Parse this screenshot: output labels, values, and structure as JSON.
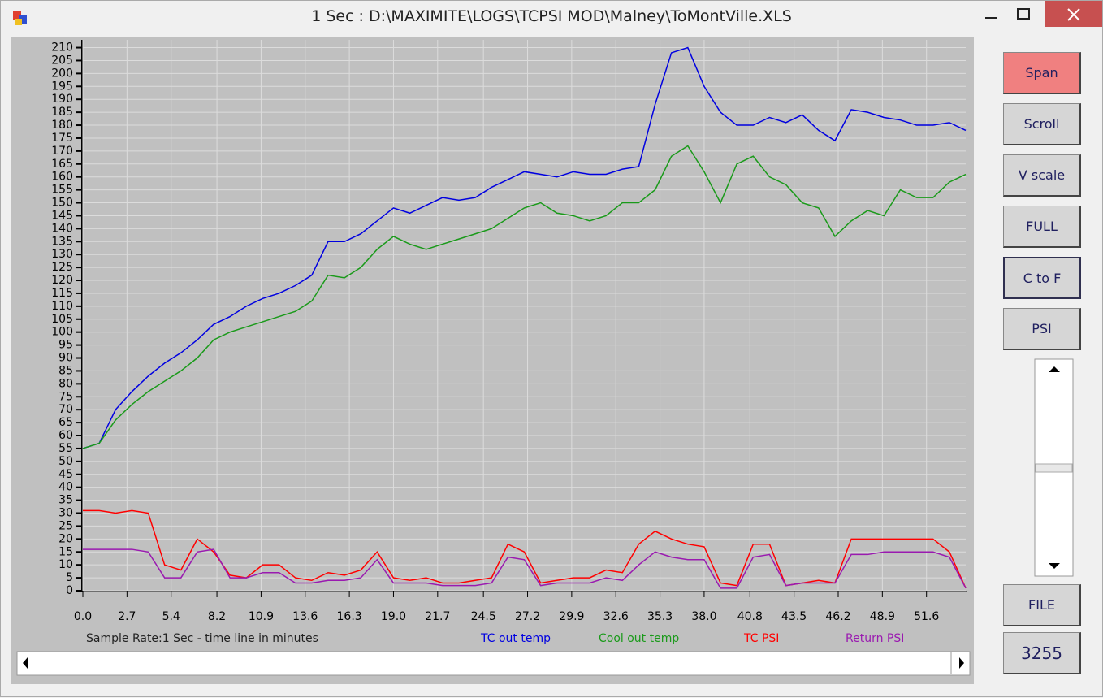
{
  "window": {
    "title": "1 Sec : D:\\MAXIMITE\\LOGS\\TCPSI MOD\\Malney\\ToMontVille.XLS"
  },
  "buttons": [
    "Span",
    "Scroll",
    "V scale",
    "FULL",
    "C to F",
    "PSI",
    "FILE"
  ],
  "counter": "3255",
  "chart_data": {
    "type": "line",
    "x_label": "Sample Rate:1 Sec - time line in minutes",
    "x": [
      0,
      1,
      2,
      3,
      4,
      5,
      6,
      7,
      8,
      9,
      10,
      11,
      12,
      13,
      14,
      15,
      16,
      17,
      18,
      19,
      20,
      21,
      22,
      23,
      24,
      25,
      26,
      27,
      28,
      29,
      30,
      31,
      32,
      33,
      34,
      35,
      36,
      37,
      38,
      39,
      40,
      41,
      42,
      43,
      44,
      45,
      46,
      47,
      48,
      49,
      50,
      51,
      52,
      53,
      54
    ],
    "xlim": [
      0,
      54
    ],
    "xticks": [
      {
        "value": 0,
        "label": "0.0"
      },
      2.7,
      5.4,
      8.2,
      10.9,
      13.6,
      16.3,
      {
        "value": 19,
        "label": "19.0"
      },
      21.7,
      24.5,
      27.2,
      29.9,
      32.6,
      35.3,
      {
        "value": 38,
        "label": "38.0"
      },
      40.8,
      43.5,
      46.2,
      48.9,
      51.6
    ],
    "ylim": [
      0,
      213
    ],
    "yticks": [
      0,
      5,
      10,
      15,
      20,
      25,
      30,
      35,
      40,
      45,
      50,
      55,
      60,
      65,
      70,
      75,
      80,
      85,
      90,
      95,
      100,
      105,
      110,
      115,
      120,
      125,
      130,
      135,
      140,
      145,
      150,
      155,
      160,
      165,
      170,
      175,
      180,
      185,
      190,
      195,
      200,
      205,
      210
    ],
    "grid": true,
    "series": [
      {
        "name": "TC out temp",
        "color": "#0000e0",
        "values": [
          55,
          57,
          70,
          77,
          83,
          88,
          92,
          97,
          103,
          106,
          110,
          113,
          115,
          118,
          122,
          135,
          135,
          138,
          143,
          148,
          146,
          149,
          152,
          151,
          152,
          156,
          159,
          162,
          161,
          160,
          162,
          161,
          161,
          163,
          164,
          188,
          208,
          210,
          195,
          185,
          180,
          180,
          183,
          181,
          184,
          178,
          174,
          186,
          185,
          183,
          182,
          180,
          180,
          181,
          178
        ]
      },
      {
        "name": "Cool out temp",
        "color": "#1a9a1a",
        "values": [
          55,
          57,
          66,
          72,
          77,
          81,
          85,
          90,
          97,
          100,
          102,
          104,
          106,
          108,
          112,
          122,
          121,
          125,
          132,
          137,
          134,
          132,
          134,
          136,
          138,
          140,
          144,
          148,
          150,
          146,
          145,
          143,
          145,
          150,
          150,
          155,
          168,
          172,
          162,
          150,
          165,
          168,
          160,
          157,
          150,
          148,
          137,
          143,
          147,
          145,
          155,
          152,
          152,
          158,
          161
        ]
      },
      {
        "name": "TC PSI",
        "color": "#ff0000",
        "values": [
          31,
          31,
          30,
          31,
          30,
          10,
          8,
          20,
          15,
          6,
          5,
          10,
          10,
          5,
          4,
          7,
          6,
          8,
          15,
          5,
          4,
          5,
          3,
          3,
          4,
          5,
          18,
          15,
          3,
          4,
          5,
          5,
          8,
          7,
          18,
          23,
          20,
          18,
          17,
          3,
          2,
          18,
          18,
          2,
          3,
          4,
          3,
          20,
          20,
          20,
          20,
          20,
          20,
          15,
          1
        ]
      },
      {
        "name": "Return PSI",
        "color": "#9a1ab0",
        "values": [
          16,
          16,
          16,
          16,
          15,
          5,
          5,
          15,
          16,
          5,
          5,
          7,
          7,
          3,
          3,
          4,
          4,
          5,
          12,
          3,
          3,
          3,
          2,
          2,
          2,
          3,
          13,
          12,
          2,
          3,
          3,
          3,
          5,
          4,
          10,
          15,
          13,
          12,
          12,
          1,
          1,
          13,
          14,
          2,
          3,
          3,
          3,
          14,
          14,
          15,
          15,
          15,
          15,
          13,
          1
        ]
      }
    ]
  }
}
